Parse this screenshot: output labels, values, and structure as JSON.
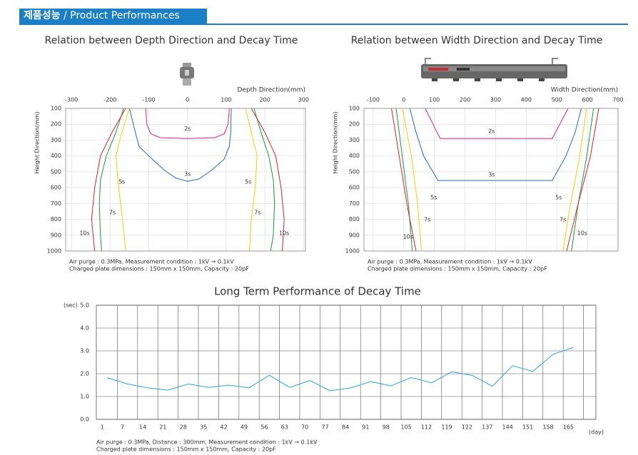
{
  "header": {
    "title_ko": "제품성능",
    "title_en": "/ Product Performances"
  },
  "chart_data": [
    {
      "type": "contour",
      "title": "Relation between Depth Direction and Decay Time",
      "xlabel": "Depth Direction(mm)",
      "ylabel": "Height Direction(mm)",
      "xlim": [
        -315,
        305
      ],
      "xticks": [
        -300,
        -200,
        -100,
        0,
        100,
        200,
        300
      ],
      "ylim": [
        100,
        1000
      ],
      "yticks": [
        100,
        200,
        300,
        400,
        500,
        600,
        700,
        800,
        900,
        1000
      ],
      "y_inverted": true,
      "grid": true,
      "series": [
        {
          "color": "#e0208a",
          "x": [
            -108,
            -105,
            -95,
            -70,
            0,
            70,
            95,
            105,
            108
          ],
          "values": [
            100,
            200,
            260,
            285,
            290,
            285,
            260,
            200,
            100
          ]
        },
        {
          "color": "#1f6fb5",
          "x": [
            -150,
            -135,
            -125,
            -100,
            -60,
            -30,
            0,
            30,
            60,
            95,
            108,
            112,
            113
          ],
          "values": [
            100,
            250,
            340,
            400,
            490,
            540,
            560,
            545,
            495,
            420,
            340,
            250,
            100
          ]
        },
        {
          "color": "#f0d000",
          "x": [
            -150,
            -170,
            -185,
            -178,
            -168,
            -160
          ],
          "values": [
            100,
            250,
            400,
            600,
            800,
            1000
          ]
        },
        {
          "color": "#f0d000",
          "x": [
            150,
            165,
            180,
            175,
            165,
            160
          ],
          "values": [
            100,
            250,
            400,
            600,
            800,
            1000
          ]
        },
        {
          "color": "#1a9a3a",
          "x": [
            -165,
            -185,
            -210,
            -225,
            -228,
            -225,
            -222
          ],
          "values": [
            100,
            250,
            400,
            550,
            700,
            900,
            1000
          ]
        },
        {
          "color": "#1a9a3a",
          "x": [
            172,
            190,
            210,
            222,
            225,
            222,
            215
          ],
          "values": [
            100,
            250,
            400,
            550,
            700,
            900,
            1000
          ]
        },
        {
          "color": "#d8232a",
          "x": [
            -160,
            -195,
            -225,
            -240,
            -248,
            -240
          ],
          "values": [
            100,
            250,
            400,
            600,
            800,
            1000
          ]
        },
        {
          "color": "#d8232a",
          "x": [
            165,
            200,
            228,
            242,
            250,
            245
          ],
          "values": [
            100,
            250,
            400,
            600,
            800,
            1000
          ]
        }
      ],
      "annotations": [
        {
          "text": "2s",
          "x": 0,
          "y": 229
        },
        {
          "text": "3s",
          "x": 0,
          "y": 514
        },
        {
          "text": "5s",
          "x": -170,
          "y": 564
        },
        {
          "text": "5s",
          "x": 157,
          "y": 564
        },
        {
          "text": "7s",
          "x": -194,
          "y": 757
        },
        {
          "text": "7s",
          "x": 181,
          "y": 757
        },
        {
          "text": "10s",
          "x": -266,
          "y": 888
        },
        {
          "text": "10s",
          "x": 250,
          "y": 888
        }
      ],
      "note": [
        "Air purge : 0.3MPa, Measurement condition : 1kV → 0.1kV",
        "Charged plate dimensions : 150mm x 150mm, Capacity : 20pF"
      ]
    },
    {
      "type": "contour",
      "title": "Relation between Width Direction and Decay Time",
      "xlabel": "Width Direction(mm)",
      "ylabel": "Height Direction(mm)",
      "xlim": [
        -130,
        700
      ],
      "xticks": [
        -100,
        0,
        100,
        200,
        300,
        400,
        500,
        600,
        700
      ],
      "ylim": [
        100,
        1000
      ],
      "yticks": [
        100,
        200,
        300,
        400,
        500,
        600,
        700,
        800,
        900,
        1000
      ],
      "y_inverted": true,
      "grid": true,
      "series": [
        {
          "color": "#e0208a",
          "x": [
            70,
            119,
            485,
            537
          ],
          "values": [
            100,
            290,
            290,
            100
          ]
        },
        {
          "color": "#1f6fb5",
          "x": [
            20,
            40,
            65,
            112,
            485,
            530,
            560,
            580
          ],
          "values": [
            100,
            250,
            400,
            555,
            555,
            400,
            250,
            100
          ]
        },
        {
          "color": "#f0d000",
          "x": [
            -5,
            25,
            45,
            58
          ],
          "values": [
            100,
            400,
            700,
            1000
          ]
        },
        {
          "color": "#f0d000",
          "x": [
            597,
            575,
            545,
            520
          ],
          "values": [
            100,
            400,
            700,
            1000
          ]
        },
        {
          "color": "#1a9a3a",
          "x": [
            -25,
            -5,
            15,
            28
          ],
          "values": [
            100,
            400,
            700,
            1000
          ]
        },
        {
          "color": "#1a9a3a",
          "x": [
            620,
            598,
            570,
            548
          ],
          "values": [
            100,
            400,
            700,
            1000
          ]
        },
        {
          "color": "#d8232a",
          "x": [
            -40,
            -15,
            10,
            40
          ],
          "values": [
            100,
            400,
            700,
            1000
          ]
        },
        {
          "color": "#d8232a",
          "x": [
            637,
            610,
            570,
            532
          ],
          "values": [
            100,
            400,
            700,
            1000
          ]
        }
      ],
      "annotations": [
        {
          "text": "2s",
          "x": 287,
          "y": 244
        },
        {
          "text": "3s",
          "x": 287,
          "y": 518
        },
        {
          "text": "5s",
          "x": 98,
          "y": 662
        },
        {
          "text": "5s",
          "x": 506,
          "y": 662
        },
        {
          "text": "7s",
          "x": 77,
          "y": 802
        },
        {
          "text": "7s",
          "x": 520,
          "y": 802
        },
        {
          "text": "10s",
          "x": 14,
          "y": 910
        },
        {
          "text": "10s",
          "x": 583,
          "y": 888
        }
      ],
      "note": [
        "Air purge : 0.3MPa, Measurement condition : 1kV → 0.1kV",
        "Charged plate dimensions : 150mm x 150mm, Capacity : 20pF"
      ]
    },
    {
      "type": "line",
      "title": "Long Term Performance of Decay Time",
      "ylabel": "(sec)",
      "xlabel": "(day)",
      "categories": [
        "1",
        "7",
        "14",
        "21",
        "28",
        "35",
        "42",
        "49",
        "56",
        "63",
        "70",
        "77",
        "84",
        "91",
        "98",
        "105",
        "112",
        "119",
        "122",
        "137",
        "144",
        "151",
        "158",
        "165"
      ],
      "values": [
        1.82,
        1.55,
        1.38,
        1.28,
        1.55,
        1.4,
        1.5,
        1.38,
        1.93,
        1.4,
        1.7,
        1.25,
        1.38,
        1.65,
        1.47,
        1.83,
        1.6,
        2.08,
        1.93,
        1.45,
        2.35,
        2.1,
        2.85,
        3.15
      ],
      "color": "#29a9e0",
      "ylim": [
        0,
        5
      ],
      "yticks": [
        {
          "value": 0,
          "label": "0.0"
        },
        {
          "value": 1,
          "label": "1.0"
        },
        {
          "value": 2,
          "label": "2.0"
        },
        {
          "value": 3,
          "label": "3.0"
        },
        {
          "value": 4,
          "label": "4.0"
        },
        {
          "value": 5,
          "label": "5.0"
        }
      ],
      "grid": true,
      "note": [
        "Air purge : 0.3MPa, Distance : 300mm, Measurement condition : 1kV → 0.1kV",
        "Charged plate dimensions : 150mm x 150mm, Capacity : 20pF"
      ]
    }
  ]
}
